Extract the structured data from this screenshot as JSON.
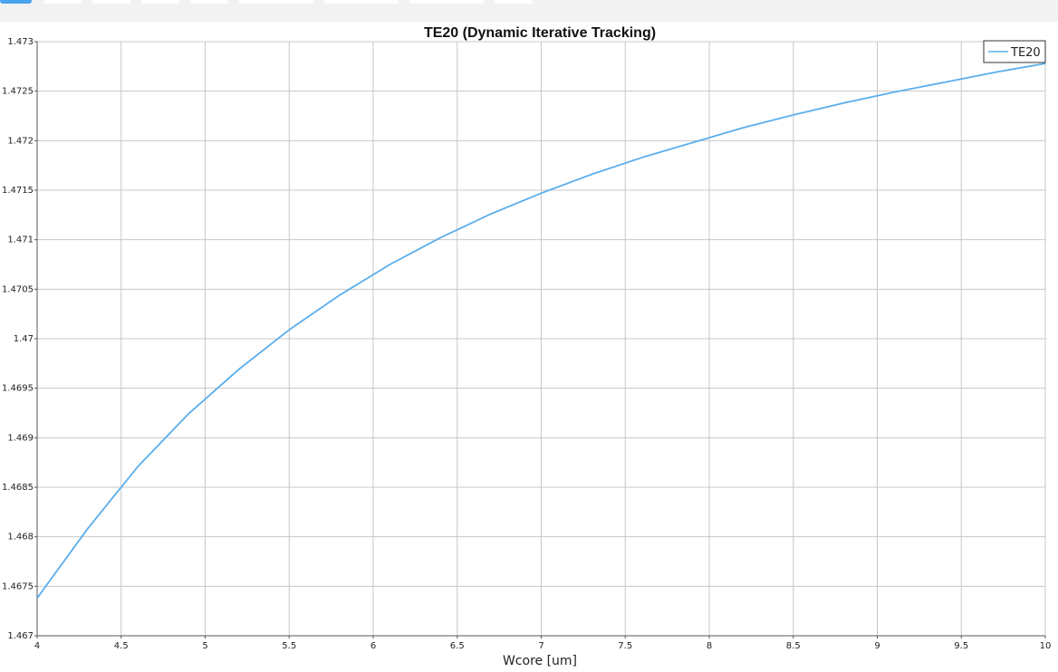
{
  "toolbar": {
    "buttons": [
      {
        "name": "toolbar-button-1",
        "active": true
      },
      {
        "name": "toolbar-button-2",
        "active": false
      },
      {
        "name": "toolbar-button-3",
        "active": false
      },
      {
        "name": "toolbar-button-4",
        "active": false
      },
      {
        "name": "toolbar-button-5",
        "active": false
      },
      {
        "name": "toolbar-button-6",
        "active": false
      },
      {
        "name": "toolbar-button-7",
        "active": false
      },
      {
        "name": "toolbar-button-8",
        "active": false
      },
      {
        "name": "toolbar-button-9",
        "active": false
      }
    ]
  },
  "chart_data": {
    "type": "line",
    "title": "TE20 (Dynamic Iterative Tracking)",
    "xlabel": "Wcore [um]",
    "ylabel": "",
    "xlim": [
      4,
      10
    ],
    "ylim": [
      1.467,
      1.473
    ],
    "xticks": [
      "4",
      "4.5",
      "5",
      "5.5",
      "6",
      "6.5",
      "7",
      "7.5",
      "8",
      "8.5",
      "9",
      "9.5",
      "10"
    ],
    "yticks": [
      "1.467",
      "1.4675",
      "1.468",
      "1.4685",
      "1.469",
      "1.4695",
      "1.47",
      "1.4705",
      "1.471",
      "1.4715",
      "1.472",
      "1.4725",
      "1.473"
    ],
    "grid": true,
    "legend_position": "top-right",
    "colors": {
      "series": "#5aaeec",
      "grid": "#c8c8c8",
      "axis": "#555555"
    },
    "series": [
      {
        "name": "TE20",
        "x": [
          4.0,
          4.3,
          4.6,
          4.9,
          5.2,
          5.5,
          5.8,
          6.1,
          6.4,
          6.7,
          7.0,
          7.3,
          7.6,
          7.9,
          8.2,
          8.5,
          8.8,
          9.1,
          9.4,
          9.7,
          10.0
        ],
        "values": [
          1.46738,
          1.46808,
          1.46871,
          1.46924,
          1.46969,
          1.47009,
          1.47044,
          1.47075,
          1.47102,
          1.47126,
          1.47147,
          1.47166,
          1.47183,
          1.47198,
          1.47213,
          1.47226,
          1.47238,
          1.47249,
          1.47259,
          1.47269,
          1.47278
        ]
      }
    ]
  }
}
